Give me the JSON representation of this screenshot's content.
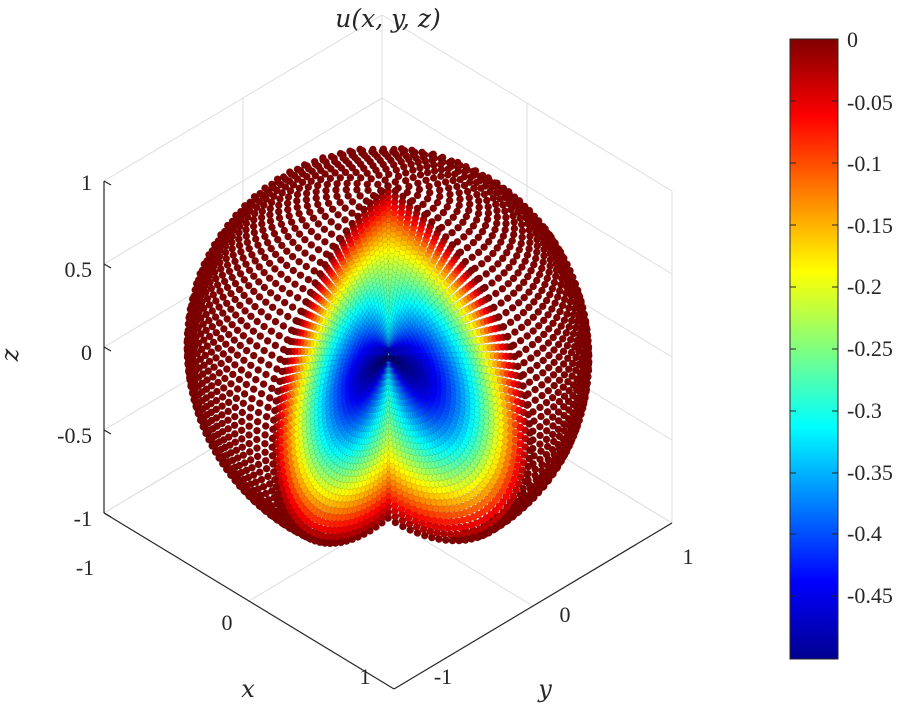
{
  "chart_data": {
    "type": "scatter",
    "title": "u(x, y, z)",
    "xlabel": "x",
    "ylabel": "y",
    "zlabel": "z",
    "x_ticks": [
      "-1",
      "0",
      "1"
    ],
    "y_ticks": [
      "-1",
      "0",
      "1"
    ],
    "z_ticks": [
      "1",
      "0.5",
      "0",
      "-0.5",
      "-1"
    ],
    "xlim": [
      -1,
      1
    ],
    "ylim": [
      -1,
      1
    ],
    "zlim": [
      -1,
      1
    ],
    "grid": true,
    "colormap": "jet",
    "color_limits": [
      -0.5,
      0
    ],
    "colorbar_ticks": [
      "0",
      "-0.05",
      "-0.1",
      "-0.15",
      "-0.2",
      "-0.25",
      "-0.3",
      "-0.35",
      "-0.4",
      "-0.45"
    ],
    "surface": "unit sphere with a wedge region removed",
    "description_of_values": "u is 0 on the outer sphere surface and decreases to about -0.5 in the interior of the cut face"
  }
}
